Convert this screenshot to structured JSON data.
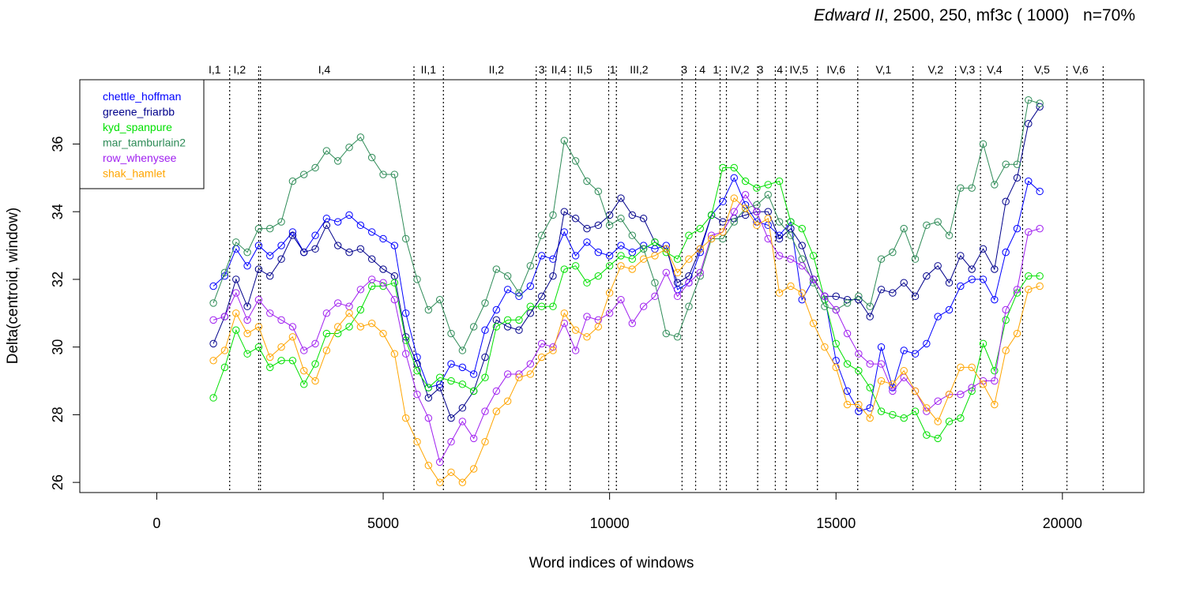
{
  "chart_data": {
    "type": "line",
    "title_italic": "Edward II",
    "title_rest": ", 2500, 250, mf3c ( 1000)   n=70%",
    "xlabel": "Word indices of windows",
    "ylabel": "Delta(centroid, window)",
    "xlim": [
      -1700,
      21800
    ],
    "ylim": [
      25.7,
      37.9
    ],
    "x_ticks": [
      0,
      5000,
      10000,
      15000,
      20000
    ],
    "x_tick_labels": [
      "0",
      "5000",
      "10000",
      "15000",
      "20000"
    ],
    "y_ticks": [
      26,
      28,
      30,
      32,
      34,
      36
    ],
    "y_tick_labels": [
      "26",
      "28",
      "30",
      "32",
      "34",
      "36"
    ],
    "legend_position": "top-left",
    "scene_boundaries": [
      1610,
      2250,
      2290,
      5680,
      6330,
      8380,
      8590,
      9130,
      9980,
      10150,
      11600,
      11900,
      12440,
      12580,
      13270,
      13660,
      13900,
      14590,
      15480,
      16700,
      17640,
      18190,
      19120,
      20100,
      20900
    ],
    "scene_labels": [
      {
        "x": 1280,
        "text": "I,1"
      },
      {
        "x": 1830,
        "text": "I,2"
      },
      {
        "x": 3700,
        "text": "I,4"
      },
      {
        "x": 6000,
        "text": "II,1"
      },
      {
        "x": 7500,
        "text": "II,2"
      },
      {
        "x": 8500,
        "text": "3"
      },
      {
        "x": 8880,
        "text": "II,4"
      },
      {
        "x": 9450,
        "text": "II,5"
      },
      {
        "x": 10070,
        "text": "1"
      },
      {
        "x": 10650,
        "text": "III,2"
      },
      {
        "x": 11650,
        "text": "3"
      },
      {
        "x": 12050,
        "text": "4"
      },
      {
        "x": 12350,
        "text": "1"
      },
      {
        "x": 12880,
        "text": "IV,2"
      },
      {
        "x": 13330,
        "text": "3"
      },
      {
        "x": 13760,
        "text": "4"
      },
      {
        "x": 14180,
        "text": "IV,5"
      },
      {
        "x": 15000,
        "text": "IV,6"
      },
      {
        "x": 16050,
        "text": "V,1"
      },
      {
        "x": 17200,
        "text": "V,2"
      },
      {
        "x": 17900,
        "text": "V,3"
      },
      {
        "x": 18500,
        "text": "V,4"
      },
      {
        "x": 19550,
        "text": "V,5"
      },
      {
        "x": 20400,
        "text": "V,6"
      }
    ],
    "x": [
      1250,
      1500,
      1750,
      2000,
      2250,
      2500,
      2750,
      3000,
      3250,
      3500,
      3750,
      4000,
      4250,
      4500,
      4750,
      5000,
      5250,
      5500,
      5750,
      6000,
      6250,
      6500,
      6750,
      7000,
      7250,
      7500,
      7750,
      8000,
      8250,
      8500,
      8750,
      9000,
      9250,
      9500,
      9750,
      10000,
      10250,
      10500,
      10750,
      11000,
      11250,
      11500,
      11750,
      12000,
      12250,
      12500,
      12750,
      13000,
      13250,
      13500,
      13750,
      14000,
      14250,
      14500,
      14750,
      15000,
      15250,
      15500,
      15750,
      16000,
      16250,
      16500,
      16750,
      17000,
      17250,
      17500,
      17750,
      18000,
      18250,
      18500,
      18750,
      19000,
      19250,
      19500
    ],
    "series": [
      {
        "name": "chettle_hoffman",
        "color": "#0000ff",
        "values": [
          31.8,
          32.1,
          32.9,
          32.4,
          33.0,
          32.7,
          33.0,
          33.4,
          32.8,
          33.3,
          33.8,
          33.7,
          33.9,
          33.6,
          33.4,
          33.2,
          33.0,
          31.0,
          29.7,
          28.8,
          28.9,
          29.5,
          29.4,
          29.2,
          30.5,
          31.1,
          31.7,
          31.5,
          31.8,
          32.7,
          32.6,
          33.4,
          32.7,
          33.1,
          32.8,
          32.7,
          33.0,
          32.8,
          33.0,
          32.9,
          33.0,
          31.7,
          31.9,
          32.8,
          33.9,
          34.3,
          35.0,
          34.2,
          33.7,
          33.6,
          33.3,
          33.7,
          31.4,
          32.0,
          31.5,
          29.6,
          28.7,
          28.1,
          28.2,
          30.0,
          28.8,
          29.9,
          29.8,
          30.1,
          30.9,
          31.1,
          31.8,
          32.0,
          32.0,
          31.4,
          32.8,
          33.5,
          34.9,
          34.6
        ]
      },
      {
        "name": "greene_friarbb",
        "color": "#00008b",
        "values": [
          30.1,
          30.9,
          32.0,
          31.2,
          32.3,
          32.1,
          32.6,
          33.3,
          32.8,
          32.9,
          33.6,
          33.0,
          32.8,
          32.9,
          32.6,
          32.3,
          32.1,
          30.3,
          29.5,
          28.5,
          28.8,
          27.9,
          28.2,
          28.7,
          29.7,
          30.8,
          30.6,
          30.5,
          31.0,
          31.5,
          32.1,
          34.0,
          33.8,
          33.5,
          33.6,
          33.9,
          34.4,
          33.9,
          33.8,
          33.1,
          32.9,
          31.9,
          32.1,
          32.9,
          33.9,
          33.7,
          33.8,
          33.9,
          34.0,
          34.0,
          33.2,
          33.5,
          33.0,
          32.0,
          31.5,
          31.5,
          31.4,
          31.4,
          30.9,
          31.7,
          31.6,
          31.9,
          31.5,
          32.1,
          32.4,
          31.9,
          32.7,
          32.3,
          32.9,
          32.3,
          34.3,
          35.0,
          36.6,
          37.1
        ]
      },
      {
        "name": "kyd_spanpure",
        "color": "#00e000",
        "values": [
          28.5,
          29.4,
          30.5,
          29.8,
          30.0,
          29.4,
          29.6,
          29.6,
          28.9,
          29.5,
          30.4,
          30.4,
          30.6,
          31.1,
          31.8,
          31.8,
          31.9,
          30.2,
          29.3,
          28.8,
          29.1,
          29.0,
          28.9,
          28.7,
          29.1,
          30.6,
          30.8,
          30.8,
          31.2,
          31.2,
          31.2,
          32.3,
          32.4,
          31.9,
          32.1,
          32.4,
          32.7,
          32.6,
          32.9,
          33.1,
          32.8,
          32.6,
          33.3,
          33.5,
          33.9,
          35.3,
          35.3,
          34.9,
          34.7,
          34.8,
          34.9,
          33.7,
          33.5,
          32.7,
          31.4,
          30.1,
          29.5,
          29.3,
          28.8,
          28.1,
          28.0,
          27.9,
          28.1,
          27.4,
          27.3,
          27.8,
          27.9,
          28.7,
          30.1,
          29.3,
          30.8,
          31.6,
          32.1,
          32.1
        ]
      },
      {
        "name": "mar_tamburlain2",
        "color": "#2e8b57",
        "values": [
          31.3,
          32.2,
          33.1,
          32.8,
          33.5,
          33.5,
          33.7,
          34.9,
          35.1,
          35.3,
          35.8,
          35.5,
          35.9,
          36.2,
          35.6,
          35.1,
          35.1,
          33.2,
          32.0,
          31.1,
          31.4,
          30.4,
          29.9,
          30.6,
          31.3,
          32.3,
          32.1,
          31.6,
          32.4,
          33.3,
          33.9,
          36.1,
          35.5,
          34.9,
          34.6,
          33.6,
          33.8,
          33.3,
          32.9,
          31.9,
          30.4,
          30.3,
          31.2,
          32.1,
          33.2,
          33.2,
          33.7,
          34.1,
          34.2,
          34.5,
          33.7,
          33.3,
          32.6,
          31.9,
          31.2,
          31.1,
          31.3,
          31.5,
          31.2,
          32.6,
          32.8,
          33.5,
          32.6,
          33.6,
          33.7,
          33.3,
          34.7,
          34.7,
          36.0,
          34.8,
          35.4,
          35.4,
          37.3,
          37.2
        ]
      },
      {
        "name": "row_whenysee",
        "color": "#a020f0",
        "values": [
          30.8,
          30.9,
          31.6,
          30.8,
          31.4,
          31.0,
          30.8,
          30.6,
          29.9,
          30.1,
          31.0,
          31.3,
          31.2,
          31.7,
          32.0,
          31.9,
          31.4,
          29.8,
          28.6,
          27.9,
          26.6,
          27.2,
          27.8,
          27.3,
          28.1,
          28.7,
          29.2,
          29.2,
          29.5,
          30.1,
          30.0,
          30.7,
          29.9,
          30.9,
          30.8,
          31.0,
          31.4,
          30.7,
          31.2,
          31.5,
          32.2,
          31.5,
          31.9,
          32.2,
          33.3,
          33.4,
          34.0,
          34.5,
          34.0,
          33.2,
          32.7,
          32.6,
          32.4,
          32.0,
          31.5,
          31.1,
          30.4,
          29.8,
          29.5,
          29.5,
          28.7,
          29.1,
          28.7,
          28.1,
          28.4,
          28.6,
          28.6,
          28.8,
          29.0,
          29.0,
          31.1,
          31.7,
          33.4,
          33.5
        ]
      },
      {
        "name": "shak_hamlet",
        "color": "#ffa500",
        "values": [
          29.6,
          29.9,
          31.0,
          30.4,
          30.6,
          29.7,
          30.0,
          30.3,
          29.3,
          29.0,
          29.9,
          30.6,
          31.0,
          30.6,
          30.7,
          30.4,
          29.8,
          27.9,
          27.2,
          26.5,
          26.0,
          26.3,
          26.0,
          26.4,
          27.2,
          28.1,
          28.4,
          29.1,
          29.2,
          29.7,
          29.9,
          31.0,
          30.5,
          30.3,
          30.6,
          31.6,
          32.4,
          32.3,
          32.6,
          32.7,
          32.9,
          32.2,
          32.6,
          32.9,
          33.2,
          33.4,
          34.4,
          34.1,
          33.6,
          33.8,
          31.6,
          31.8,
          31.6,
          30.7,
          30.0,
          29.4,
          28.3,
          28.3,
          27.9,
          29.0,
          28.9,
          29.3,
          28.7,
          28.2,
          27.8,
          28.6,
          29.4,
          29.4,
          28.9,
          28.3,
          29.9,
          30.4,
          31.7,
          31.8
        ]
      }
    ]
  }
}
